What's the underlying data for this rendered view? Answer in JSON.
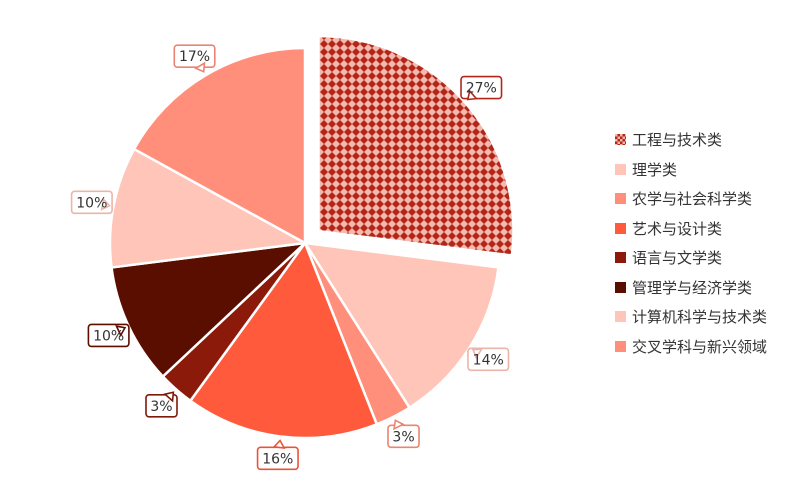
{
  "chart_data": {
    "type": "pie",
    "title": "",
    "unit": "%",
    "categories": [
      "工程与技术类",
      "理学类",
      "农学与社会科学类",
      "艺术与设计类",
      "语言与文学类",
      "管理学与经济学类",
      "计算机科学与技术类",
      "交叉学科与新兴领域"
    ],
    "values": [
      27,
      14,
      3,
      16,
      3,
      10,
      10,
      17
    ],
    "labels": [
      "27%",
      "14%",
      "3%",
      "16%",
      "3%",
      "10%",
      "10%",
      "17%"
    ],
    "colors": [
      "#c0392b",
      "#ffc5b8",
      "#ff8f7a",
      "#ff5a3c",
      "#8b1a0a",
      "#5a0e00",
      "#ffc5b8",
      "#ff8f7a"
    ],
    "exploded": [
      "工程与技术类"
    ],
    "patterned": [
      "工程与技术类"
    ],
    "legend_position": "right",
    "start_angle": "top, clockwise"
  }
}
